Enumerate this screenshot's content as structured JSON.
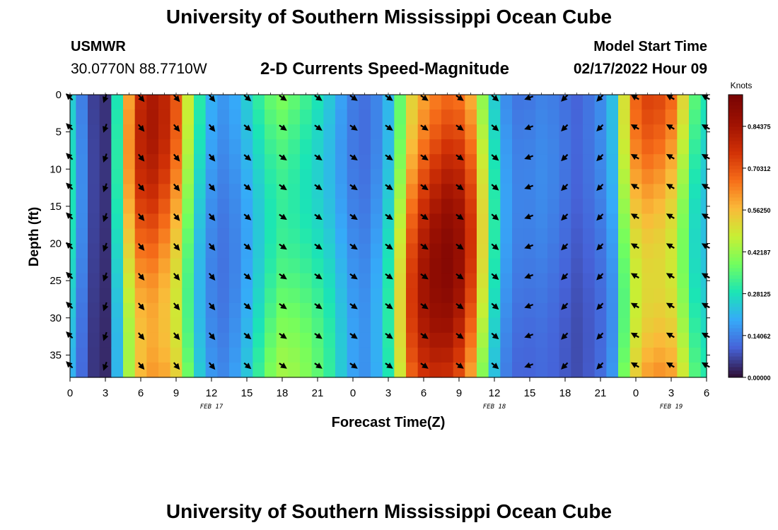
{
  "page": {
    "title": "University of Southern Mississippi Ocean Cube",
    "title_repeat": "University of Southern Mississippi Ocean Cube",
    "station": "USMWR",
    "coordinates": "30.0770N  88.7710W",
    "product": "2-D Currents Speed-Magnitude",
    "model_start_label": "Model Start Time",
    "model_start_value": "02/17/2022 Hour 09"
  },
  "chart_data": {
    "type": "heatmap",
    "title": "2-D Currents Speed-Magnitude",
    "xlabel": "Forecast Time(Z)",
    "ylabel": "Depth (ft)",
    "x_unit": "hours since 02/17 00Z",
    "xlim": [
      0,
      54
    ],
    "ylim": [
      0,
      38
    ],
    "x_ticks": [
      0,
      3,
      6,
      9,
      12,
      15,
      18,
      21,
      24,
      27,
      30,
      33,
      36,
      39,
      42,
      45,
      48,
      51,
      54
    ],
    "x_tick_labels": [
      "0",
      "3",
      "6",
      "9",
      "12",
      "15",
      "18",
      "21",
      "0",
      "3",
      "6",
      "9",
      "12",
      "15",
      "18",
      "21",
      "0",
      "3",
      "6"
    ],
    "y_ticks": [
      0,
      5,
      10,
      15,
      20,
      25,
      30,
      35
    ],
    "y_tick_labels": [
      "0",
      "5",
      "10",
      "15",
      "20",
      "25",
      "30",
      "35"
    ],
    "date_labels": [
      {
        "x": 12,
        "text": "FEB 17"
      },
      {
        "x": 36,
        "text": "FEB 18"
      },
      {
        "x": 51,
        "text": "FEB 19"
      }
    ],
    "colorbar": {
      "label": "Knots",
      "min": 0.0,
      "max": 0.95,
      "tick_values": [
        0.0,
        0.140625,
        0.28125,
        0.421875,
        0.5625,
        0.703125,
        0.84375
      ],
      "tick_labels": [
        "0.00000",
        "0.14062",
        "0.28125",
        "0.42187",
        "0.56250",
        "0.70312",
        "0.84375"
      ]
    },
    "speed_profile": [
      {
        "t": 0,
        "speed": 0.28
      },
      {
        "t": 1,
        "speed": 0.15
      },
      {
        "t": 2,
        "speed": 0.06
      },
      {
        "t": 3,
        "speed": 0.04
      },
      {
        "t": 4,
        "speed": 0.3
      },
      {
        "t": 5,
        "speed": 0.62
      },
      {
        "t": 6,
        "speed": 0.8
      },
      {
        "t": 7,
        "speed": 0.84
      },
      {
        "t": 8,
        "speed": 0.8
      },
      {
        "t": 9,
        "speed": 0.7
      },
      {
        "t": 10,
        "speed": 0.48
      },
      {
        "t": 11,
        "speed": 0.3
      },
      {
        "t": 12,
        "speed": 0.2
      },
      {
        "t": 13,
        "speed": 0.17
      },
      {
        "t": 14,
        "speed": 0.2
      },
      {
        "t": 15,
        "speed": 0.26
      },
      {
        "t": 16,
        "speed": 0.34
      },
      {
        "t": 17,
        "speed": 0.41
      },
      {
        "t": 18,
        "speed": 0.45
      },
      {
        "t": 19,
        "speed": 0.43
      },
      {
        "t": 20,
        "speed": 0.4
      },
      {
        "t": 21,
        "speed": 0.36
      },
      {
        "t": 22,
        "speed": 0.31
      },
      {
        "t": 23,
        "speed": 0.24
      },
      {
        "t": 24,
        "speed": 0.18
      },
      {
        "t": 25,
        "speed": 0.16
      },
      {
        "t": 26,
        "speed": 0.2
      },
      {
        "t": 27,
        "speed": 0.3
      },
      {
        "t": 28,
        "speed": 0.52
      },
      {
        "t": 29,
        "speed": 0.75
      },
      {
        "t": 30,
        "speed": 0.85
      },
      {
        "t": 31,
        "speed": 0.9
      },
      {
        "t": 32,
        "speed": 0.92
      },
      {
        "t": 33,
        "speed": 0.88
      },
      {
        "t": 34,
        "speed": 0.76
      },
      {
        "t": 35,
        "speed": 0.52
      },
      {
        "t": 36,
        "speed": 0.3
      },
      {
        "t": 37,
        "speed": 0.18
      },
      {
        "t": 38,
        "speed": 0.14
      },
      {
        "t": 39,
        "speed": 0.14
      },
      {
        "t": 40,
        "speed": 0.15
      },
      {
        "t": 41,
        "speed": 0.14
      },
      {
        "t": 42,
        "speed": 0.12
      },
      {
        "t": 43,
        "speed": 0.1
      },
      {
        "t": 44,
        "speed": 0.12
      },
      {
        "t": 45,
        "speed": 0.15
      },
      {
        "t": 46,
        "speed": 0.22
      },
      {
        "t": 47,
        "speed": 0.5
      },
      {
        "t": 48,
        "speed": 0.68
      },
      {
        "t": 49,
        "speed": 0.74
      },
      {
        "t": 50,
        "speed": 0.74
      },
      {
        "t": 51,
        "speed": 0.7
      },
      {
        "t": 52,
        "speed": 0.55
      },
      {
        "t": 53,
        "speed": 0.38
      },
      {
        "t": 54,
        "speed": 0.32
      }
    ],
    "vector_depths_ft": [
      0,
      4,
      8,
      12,
      16,
      20,
      24,
      28,
      32,
      36
    ],
    "vector_direction_deg": [
      {
        "t": 0,
        "dir": 315
      },
      {
        "t": 3,
        "dir": 200
      },
      {
        "t": 6,
        "dir": 140
      },
      {
        "t": 9,
        "dir": 140
      },
      {
        "t": 12,
        "dir": 140
      },
      {
        "t": 15,
        "dir": 130
      },
      {
        "t": 18,
        "dir": 125
      },
      {
        "t": 21,
        "dir": 125
      },
      {
        "t": 24,
        "dir": 125
      },
      {
        "t": 27,
        "dir": 125
      },
      {
        "t": 30,
        "dir": 125
      },
      {
        "t": 33,
        "dir": 125
      },
      {
        "t": 36,
        "dir": 130
      },
      {
        "t": 39,
        "dir": 250
      },
      {
        "t": 42,
        "dir": 225
      },
      {
        "t": 45,
        "dir": 225
      },
      {
        "t": 48,
        "dir": 300
      },
      {
        "t": 51,
        "dir": 300
      },
      {
        "t": 54,
        "dir": 300
      }
    ]
  }
}
